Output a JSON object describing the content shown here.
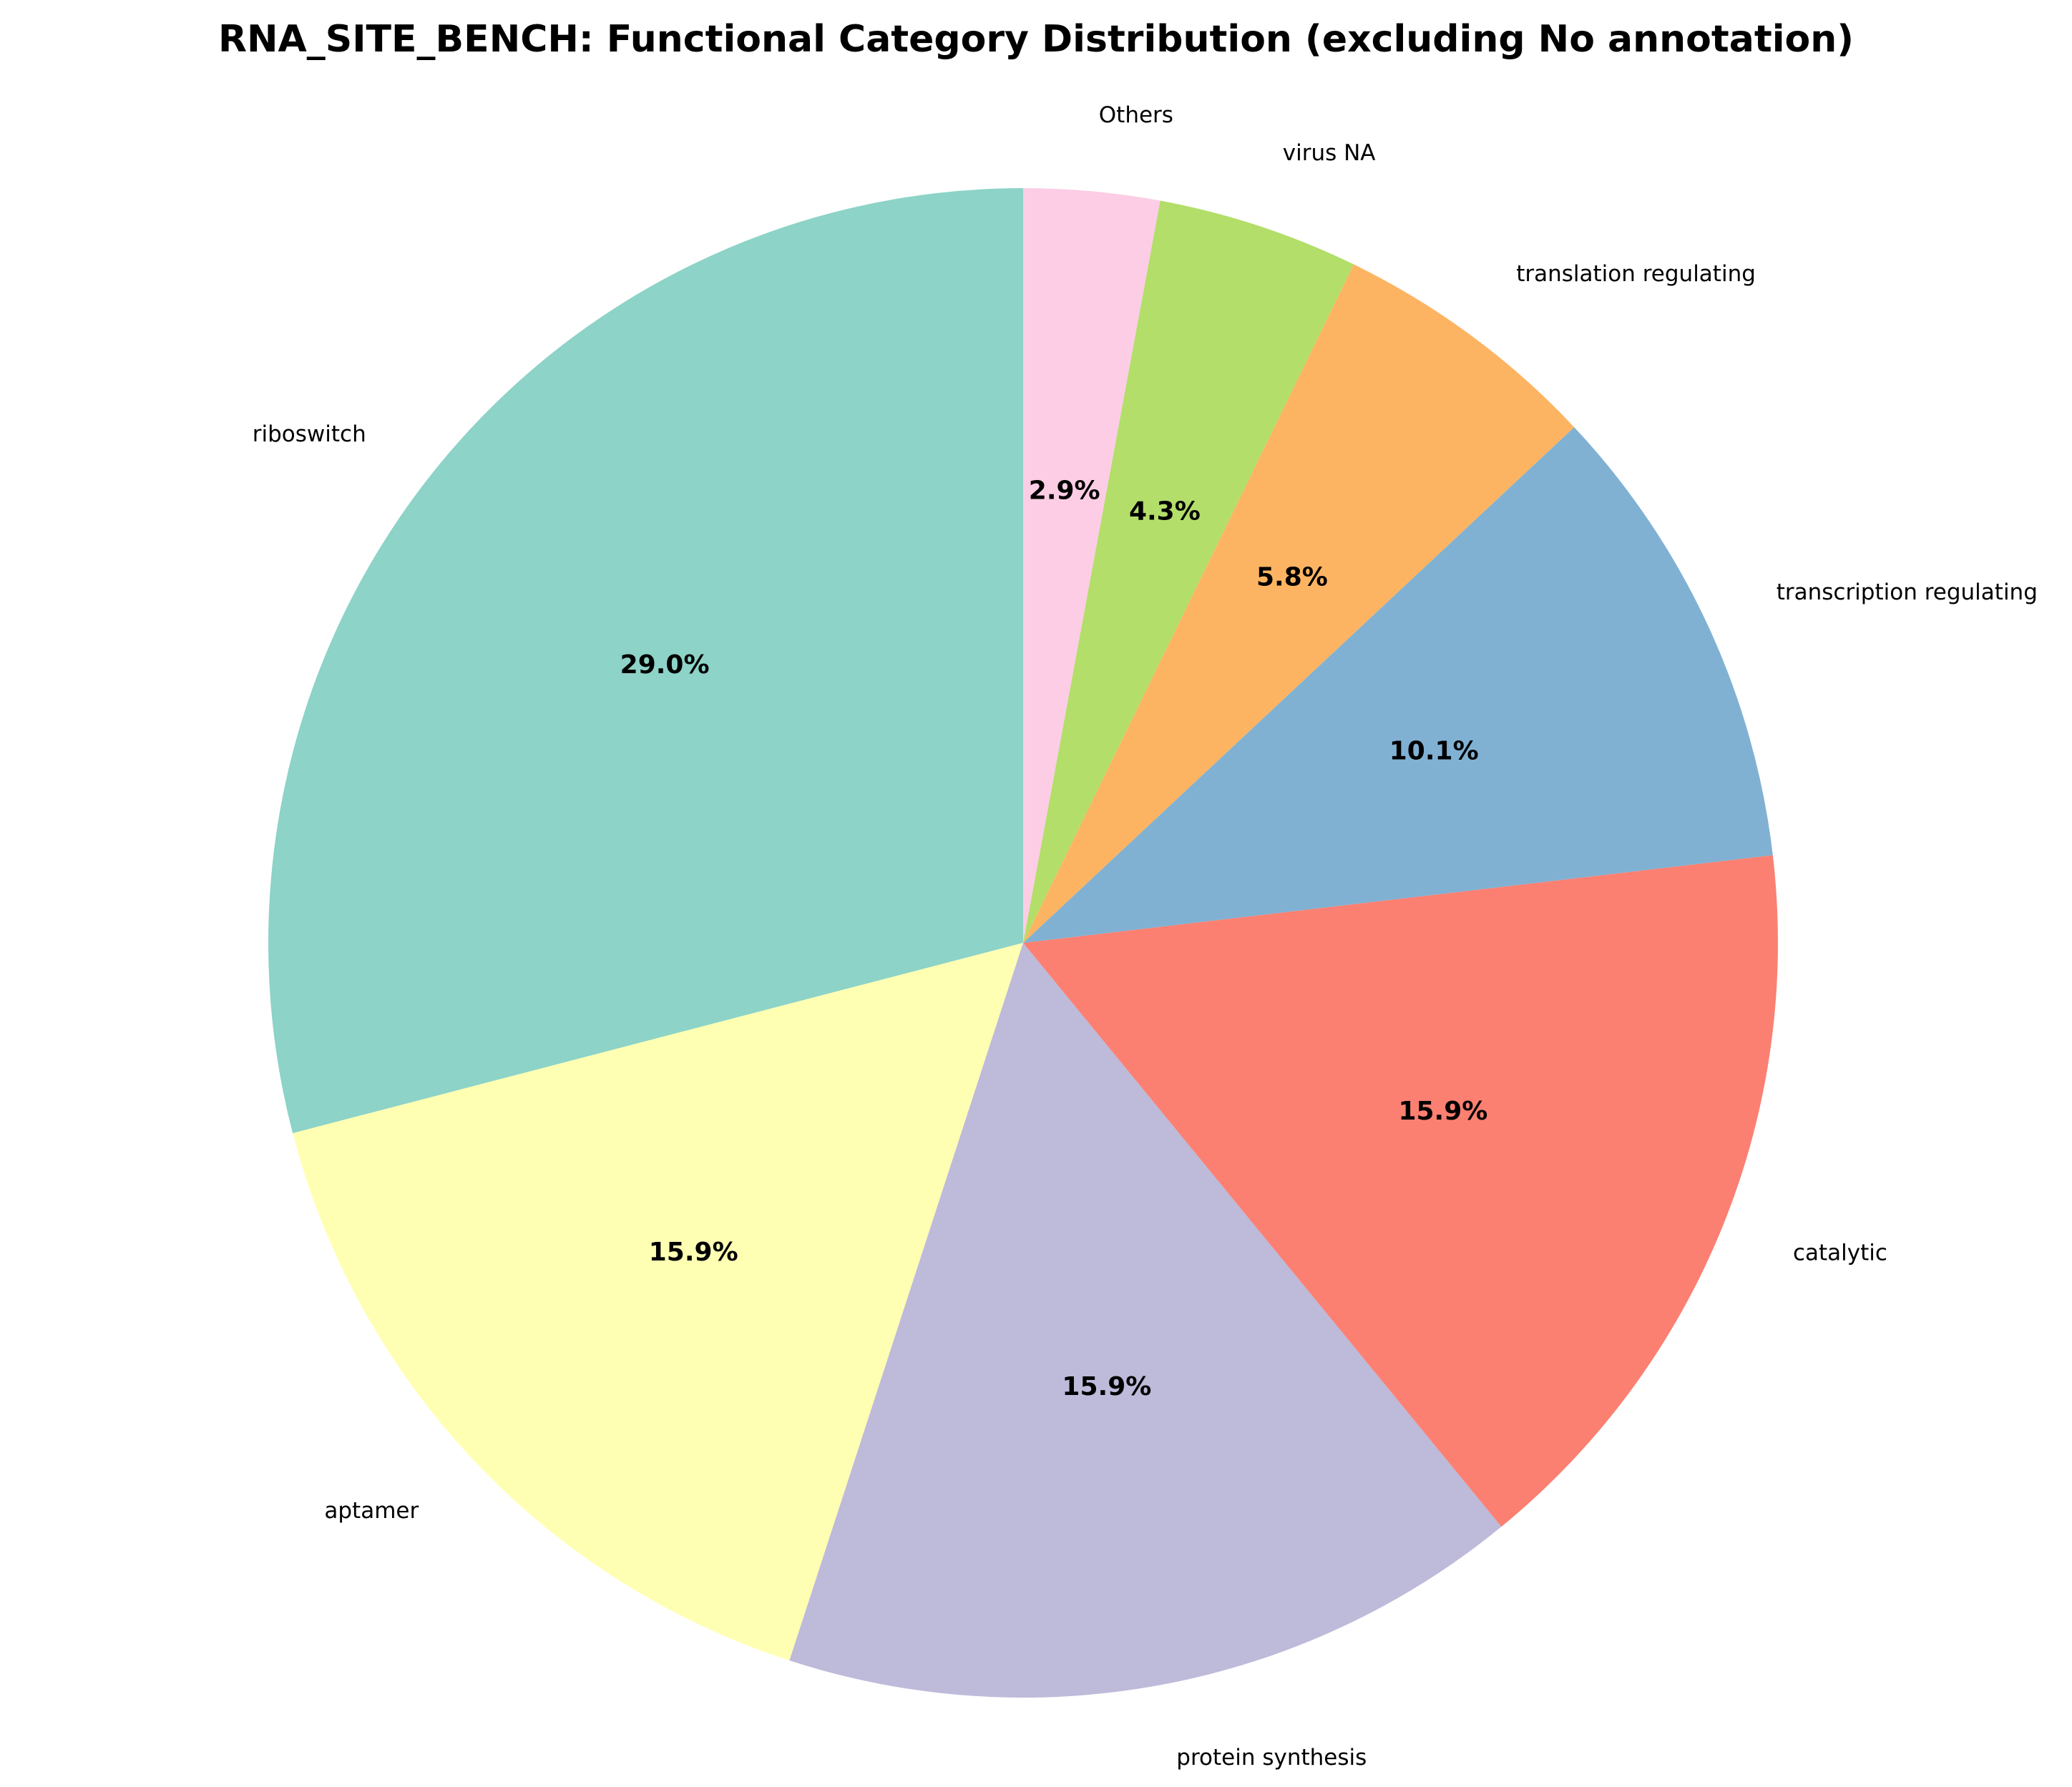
{
  "chart_data": {
    "type": "pie",
    "title": "RNA_SITE_BENCH: Functional Category Distribution (excluding No annotation)",
    "start_angle_deg": 90,
    "direction": "counterclockwise",
    "slices": [
      {
        "label": "riboswitch",
        "value": 29.0,
        "pct_text": "29.0%",
        "color": "#8dd3c7"
      },
      {
        "label": "aptamer",
        "value": 15.9,
        "pct_text": "15.9%",
        "color": "#ffffb3"
      },
      {
        "label": "protein synthesis",
        "value": 15.9,
        "pct_text": "15.9%",
        "color": "#bebada"
      },
      {
        "label": "catalytic",
        "value": 15.9,
        "pct_text": "15.9%",
        "color": "#fb8072"
      },
      {
        "label": "transcription regulating",
        "value": 10.1,
        "pct_text": "10.1%",
        "color": "#80b1d3"
      },
      {
        "label": "translation regulating",
        "value": 5.8,
        "pct_text": "5.8%",
        "color": "#fdb462"
      },
      {
        "label": "virus NA",
        "value": 4.3,
        "pct_text": "4.3%",
        "color": "#b3de69"
      },
      {
        "label": "Others",
        "value": 2.9,
        "pct_text": "2.9%",
        "color": "#fccde5"
      }
    ]
  }
}
